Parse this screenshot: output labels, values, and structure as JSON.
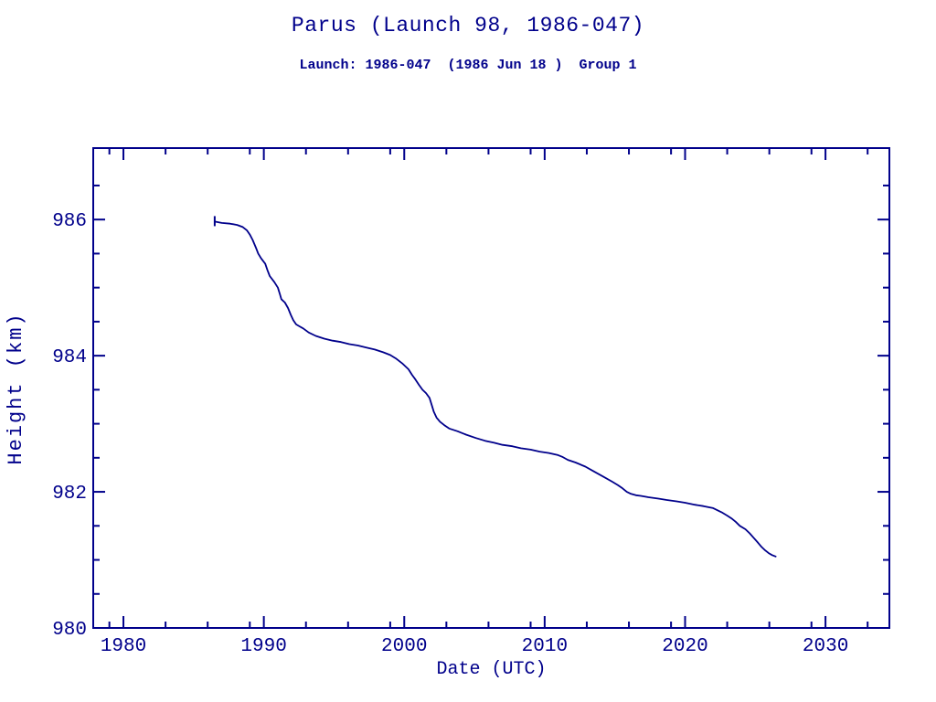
{
  "page": {
    "background": "#ffffff",
    "accent": "#00008B"
  },
  "header": {
    "title": "Parus (Launch 98, 1986-047)",
    "subtitle": "Launch: 1986-047  (1986 Jun 18 )  Group 1"
  },
  "chart_data": {
    "type": "line",
    "title": "Parus (Launch 98, 1986-047)",
    "subtitle": "Launch: 1986-047  (1986 Jun 18 )  Group 1",
    "xlabel": "Date (UTC)",
    "ylabel": "Height (km)",
    "xlim": [
      1977.85,
      2034.55
    ],
    "ylim": [
      980,
      987.05
    ],
    "x_major_ticks": [
      1980,
      1990,
      2000,
      2010,
      2020,
      2030
    ],
    "x_minor_ticks": [
      1979,
      1983,
      1986,
      1989,
      1993,
      1996,
      1999,
      2003,
      2006,
      2009,
      2013,
      2016,
      2019,
      2023,
      2026,
      2029,
      2033
    ],
    "y_major_ticks": [
      980,
      982,
      984,
      986
    ],
    "y_minor_ticks": [
      980.5,
      981,
      981.5,
      982.5,
      983,
      983.5,
      984.5,
      985,
      985.5,
      986.5
    ],
    "grid": false,
    "legend": null,
    "line_color": "#00008B",
    "start_marker": {
      "x": 1986.5,
      "y": 985.97,
      "type": "vertical-dash"
    },
    "series": [
      {
        "name": "height_km",
        "points": [
          [
            1986.5,
            985.97
          ],
          [
            1987.0,
            985.95
          ],
          [
            1987.6,
            985.94
          ],
          [
            1988.1,
            985.92
          ],
          [
            1988.5,
            985.89
          ],
          [
            1988.8,
            985.84
          ],
          [
            1989.0,
            985.78
          ],
          [
            1989.2,
            985.7
          ],
          [
            1989.45,
            985.58
          ],
          [
            1989.6,
            985.5
          ],
          [
            1989.8,
            985.43
          ],
          [
            1990.1,
            985.35
          ],
          [
            1990.25,
            985.26
          ],
          [
            1990.42,
            985.17
          ],
          [
            1990.75,
            985.08
          ],
          [
            1991.0,
            985.0
          ],
          [
            1991.15,
            984.9
          ],
          [
            1991.25,
            984.83
          ],
          [
            1991.5,
            984.78
          ],
          [
            1991.72,
            984.7
          ],
          [
            1991.92,
            984.6
          ],
          [
            1992.1,
            984.52
          ],
          [
            1992.3,
            984.46
          ],
          [
            1992.55,
            984.43
          ],
          [
            1992.8,
            984.4
          ],
          [
            1993.2,
            984.34
          ],
          [
            1993.7,
            984.29
          ],
          [
            1994.3,
            984.25
          ],
          [
            1994.9,
            984.22
          ],
          [
            1995.5,
            984.2
          ],
          [
            1996.1,
            984.17
          ],
          [
            1996.7,
            984.15
          ],
          [
            1997.3,
            984.12
          ],
          [
            1997.9,
            984.09
          ],
          [
            1998.5,
            984.05
          ],
          [
            1999.0,
            984.01
          ],
          [
            1999.4,
            983.96
          ],
          [
            1999.9,
            983.88
          ],
          [
            2000.3,
            983.8
          ],
          [
            2000.55,
            983.72
          ],
          [
            2000.8,
            983.65
          ],
          [
            2001.05,
            983.57
          ],
          [
            2001.3,
            983.5
          ],
          [
            2001.55,
            983.45
          ],
          [
            2001.8,
            983.38
          ],
          [
            2001.95,
            983.28
          ],
          [
            2002.1,
            983.18
          ],
          [
            2002.3,
            983.09
          ],
          [
            2002.55,
            983.03
          ],
          [
            2002.85,
            982.98
          ],
          [
            2003.2,
            982.93
          ],
          [
            2003.8,
            982.89
          ],
          [
            2004.4,
            982.84
          ],
          [
            2005.1,
            982.79
          ],
          [
            2005.75,
            982.75
          ],
          [
            2006.4,
            982.72
          ],
          [
            2007.0,
            982.69
          ],
          [
            2007.7,
            982.67
          ],
          [
            2008.3,
            982.64
          ],
          [
            2009.0,
            982.62
          ],
          [
            2009.65,
            982.59
          ],
          [
            2010.3,
            982.57
          ],
          [
            2010.95,
            982.54
          ],
          [
            2011.3,
            982.51
          ],
          [
            2011.65,
            982.47
          ],
          [
            2012.2,
            982.43
          ],
          [
            2012.9,
            982.37
          ],
          [
            2013.5,
            982.3
          ],
          [
            2014.2,
            982.22
          ],
          [
            2014.8,
            982.15
          ],
          [
            2015.2,
            982.1
          ],
          [
            2015.55,
            982.05
          ],
          [
            2015.85,
            982.0
          ],
          [
            2016.15,
            981.97
          ],
          [
            2016.5,
            981.95
          ],
          [
            2016.85,
            981.94
          ],
          [
            2017.4,
            981.92
          ],
          [
            2018.1,
            981.9
          ],
          [
            2018.7,
            981.88
          ],
          [
            2019.4,
            981.86
          ],
          [
            2020.0,
            981.84
          ],
          [
            2020.7,
            981.81
          ],
          [
            2021.3,
            981.79
          ],
          [
            2022.0,
            981.76
          ],
          [
            2022.6,
            981.7
          ],
          [
            2023.0,
            981.65
          ],
          [
            2023.3,
            981.61
          ],
          [
            2023.6,
            981.56
          ],
          [
            2023.9,
            981.5
          ],
          [
            2024.3,
            981.45
          ],
          [
            2024.6,
            981.39
          ],
          [
            2024.9,
            981.32
          ],
          [
            2025.2,
            981.25
          ],
          [
            2025.45,
            981.19
          ],
          [
            2025.7,
            981.14
          ],
          [
            2025.95,
            981.1
          ],
          [
            2026.2,
            981.07
          ],
          [
            2026.45,
            981.05
          ]
        ]
      }
    ]
  }
}
